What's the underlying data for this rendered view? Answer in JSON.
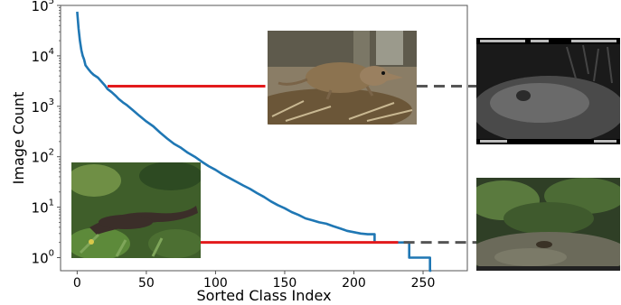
{
  "chart_data": {
    "type": "line",
    "title": "",
    "xlabel": "Sorted Class Index",
    "ylabel": "Image Count",
    "xlim": [
      -12,
      282
    ],
    "ylim": [
      0.55,
      100000
    ],
    "yscale": "log",
    "x_ticks": [
      0,
      50,
      100,
      150,
      200,
      250
    ],
    "x_tick_labels": [
      "0",
      "50",
      "100",
      "150",
      "200",
      "250"
    ],
    "y_ticks": [
      1,
      10,
      100,
      1000,
      10000,
      100000
    ],
    "y_tick_labels": [
      "10^0",
      "10^1",
      "10^2",
      "10^3",
      "10^4",
      "10^5"
    ],
    "grid": false,
    "series": [
      {
        "color": "#1f77b4",
        "x": [
          0,
          1,
          2,
          3,
          4,
          5,
          6,
          8,
          10,
          12,
          15,
          18,
          20,
          22,
          25,
          28,
          30,
          33,
          36,
          40,
          45,
          50,
          55,
          60,
          65,
          70,
          75,
          80,
          85,
          90,
          95,
          100,
          105,
          110,
          115,
          120,
          125,
          130,
          135,
          140,
          145,
          150,
          155,
          160,
          165,
          170,
          175,
          180,
          185,
          190,
          195,
          200,
          205,
          210,
          215,
          215,
          220,
          225,
          230,
          233,
          233,
          238,
          240,
          240,
          245,
          250,
          255,
          255,
          256
        ],
        "y": [
          75000,
          35000,
          20000,
          13000,
          10000,
          8500,
          6500,
          5500,
          4700,
          4200,
          3700,
          3000,
          2600,
          2200,
          1900,
          1600,
          1400,
          1200,
          1050,
          850,
          650,
          500,
          400,
          300,
          230,
          180,
          150,
          120,
          100,
          80,
          65,
          55,
          45,
          38,
          32,
          27,
          23,
          19,
          16,
          13,
          11,
          9.5,
          8,
          7,
          6,
          5.5,
          5,
          4.7,
          4.2,
          3.8,
          3.4,
          3.2,
          3,
          2.9,
          2.9,
          2,
          2,
          2,
          2,
          2,
          2,
          2,
          2,
          1,
          1,
          1,
          1,
          0.55,
          0.55
        ]
      }
    ],
    "annotations": [
      {
        "type": "line",
        "color": "#e31a1c",
        "x0": 22,
        "x1": 136,
        "y": 2500
      },
      {
        "type": "line",
        "color": "#e31a1c",
        "x0": 88,
        "x1": 232,
        "y": 2
      },
      {
        "type": "dashed-line",
        "color": "#555555",
        "y": 2500
      },
      {
        "type": "dashed-line",
        "color": "#555555",
        "y": 2
      }
    ]
  },
  "photos": [
    {
      "name": "photo-rat",
      "icon": "rodent-photo"
    },
    {
      "name": "photo-mustelid",
      "icon": "mustelid-photo"
    },
    {
      "name": "photo-camera-trap-night",
      "icon": "camera-trap-night-photo"
    },
    {
      "name": "photo-camera-trap-day",
      "icon": "camera-trap-day-photo"
    }
  ]
}
